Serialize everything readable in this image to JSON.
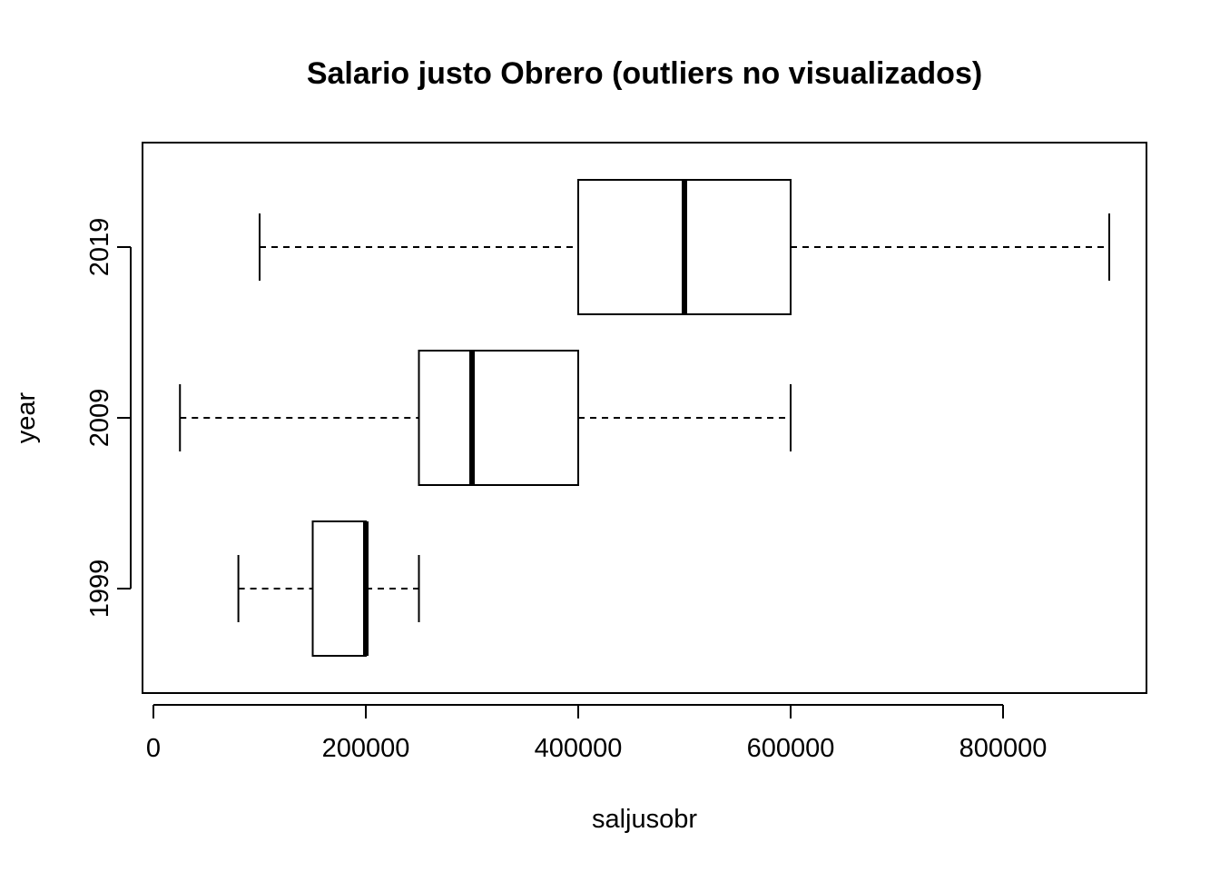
{
  "chart_data": {
    "type": "boxplot",
    "orientation": "horizontal",
    "title": "Salario justo Obrero (outliers no visualizados)",
    "xlabel": "saljusobr",
    "ylabel": "year",
    "xlim": [
      0,
      934000
    ],
    "xticks": [
      0,
      200000,
      400000,
      600000,
      800000
    ],
    "xtick_labels": [
      "0",
      "200000",
      "400000",
      "600000",
      "800000"
    ],
    "categories": [
      "1999",
      "2009",
      "2019"
    ],
    "boxes": [
      {
        "category": "1999",
        "whisker_low": 80000,
        "q1": 150000,
        "median": 200000,
        "q3": 200000,
        "whisker_high": 250000
      },
      {
        "category": "2009",
        "whisker_low": 25000,
        "q1": 250000,
        "median": 300000,
        "q3": 400000,
        "whisker_high": 600000
      },
      {
        "category": "2019",
        "whisker_low": 100000,
        "q1": 400000,
        "median": 500000,
        "q3": 600000,
        "whisker_high": 900000
      }
    ],
    "outliers_shown": false,
    "grid": false,
    "legend": "none"
  }
}
